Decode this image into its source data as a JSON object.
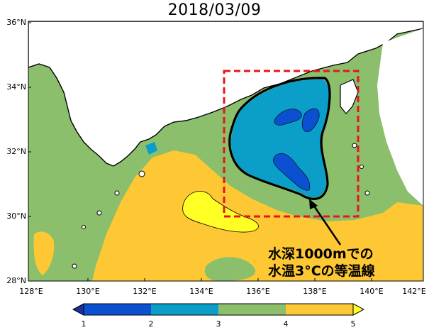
{
  "title": "2018/03/09",
  "map": {
    "lat_labels": [
      "36°N",
      "34°N",
      "32°N",
      "30°N",
      "28°N"
    ],
    "lon_labels": [
      "128°E",
      "130°E",
      "132°E",
      "134°E",
      "136°E",
      "138°E",
      "140°E",
      "142°E"
    ],
    "annotation_line1": "水深1000mでの",
    "annotation_line2": "水温3°Cの等温線",
    "region_box_color": "#e8141b"
  },
  "colorbar": {
    "ticks": [
      "1",
      "2",
      "3",
      "4",
      "5"
    ],
    "colors": [
      "#0b50d0",
      "#0a9ec8",
      "#8bbf6c",
      "#fdc834",
      "#ffff26"
    ]
  },
  "colors": {
    "deep_blue": "#0b50d0",
    "teal": "#0a9ec8",
    "green": "#8bbf6c",
    "orange": "#fdc834",
    "yellow": "#ffff26",
    "land": "#ffffff"
  }
}
